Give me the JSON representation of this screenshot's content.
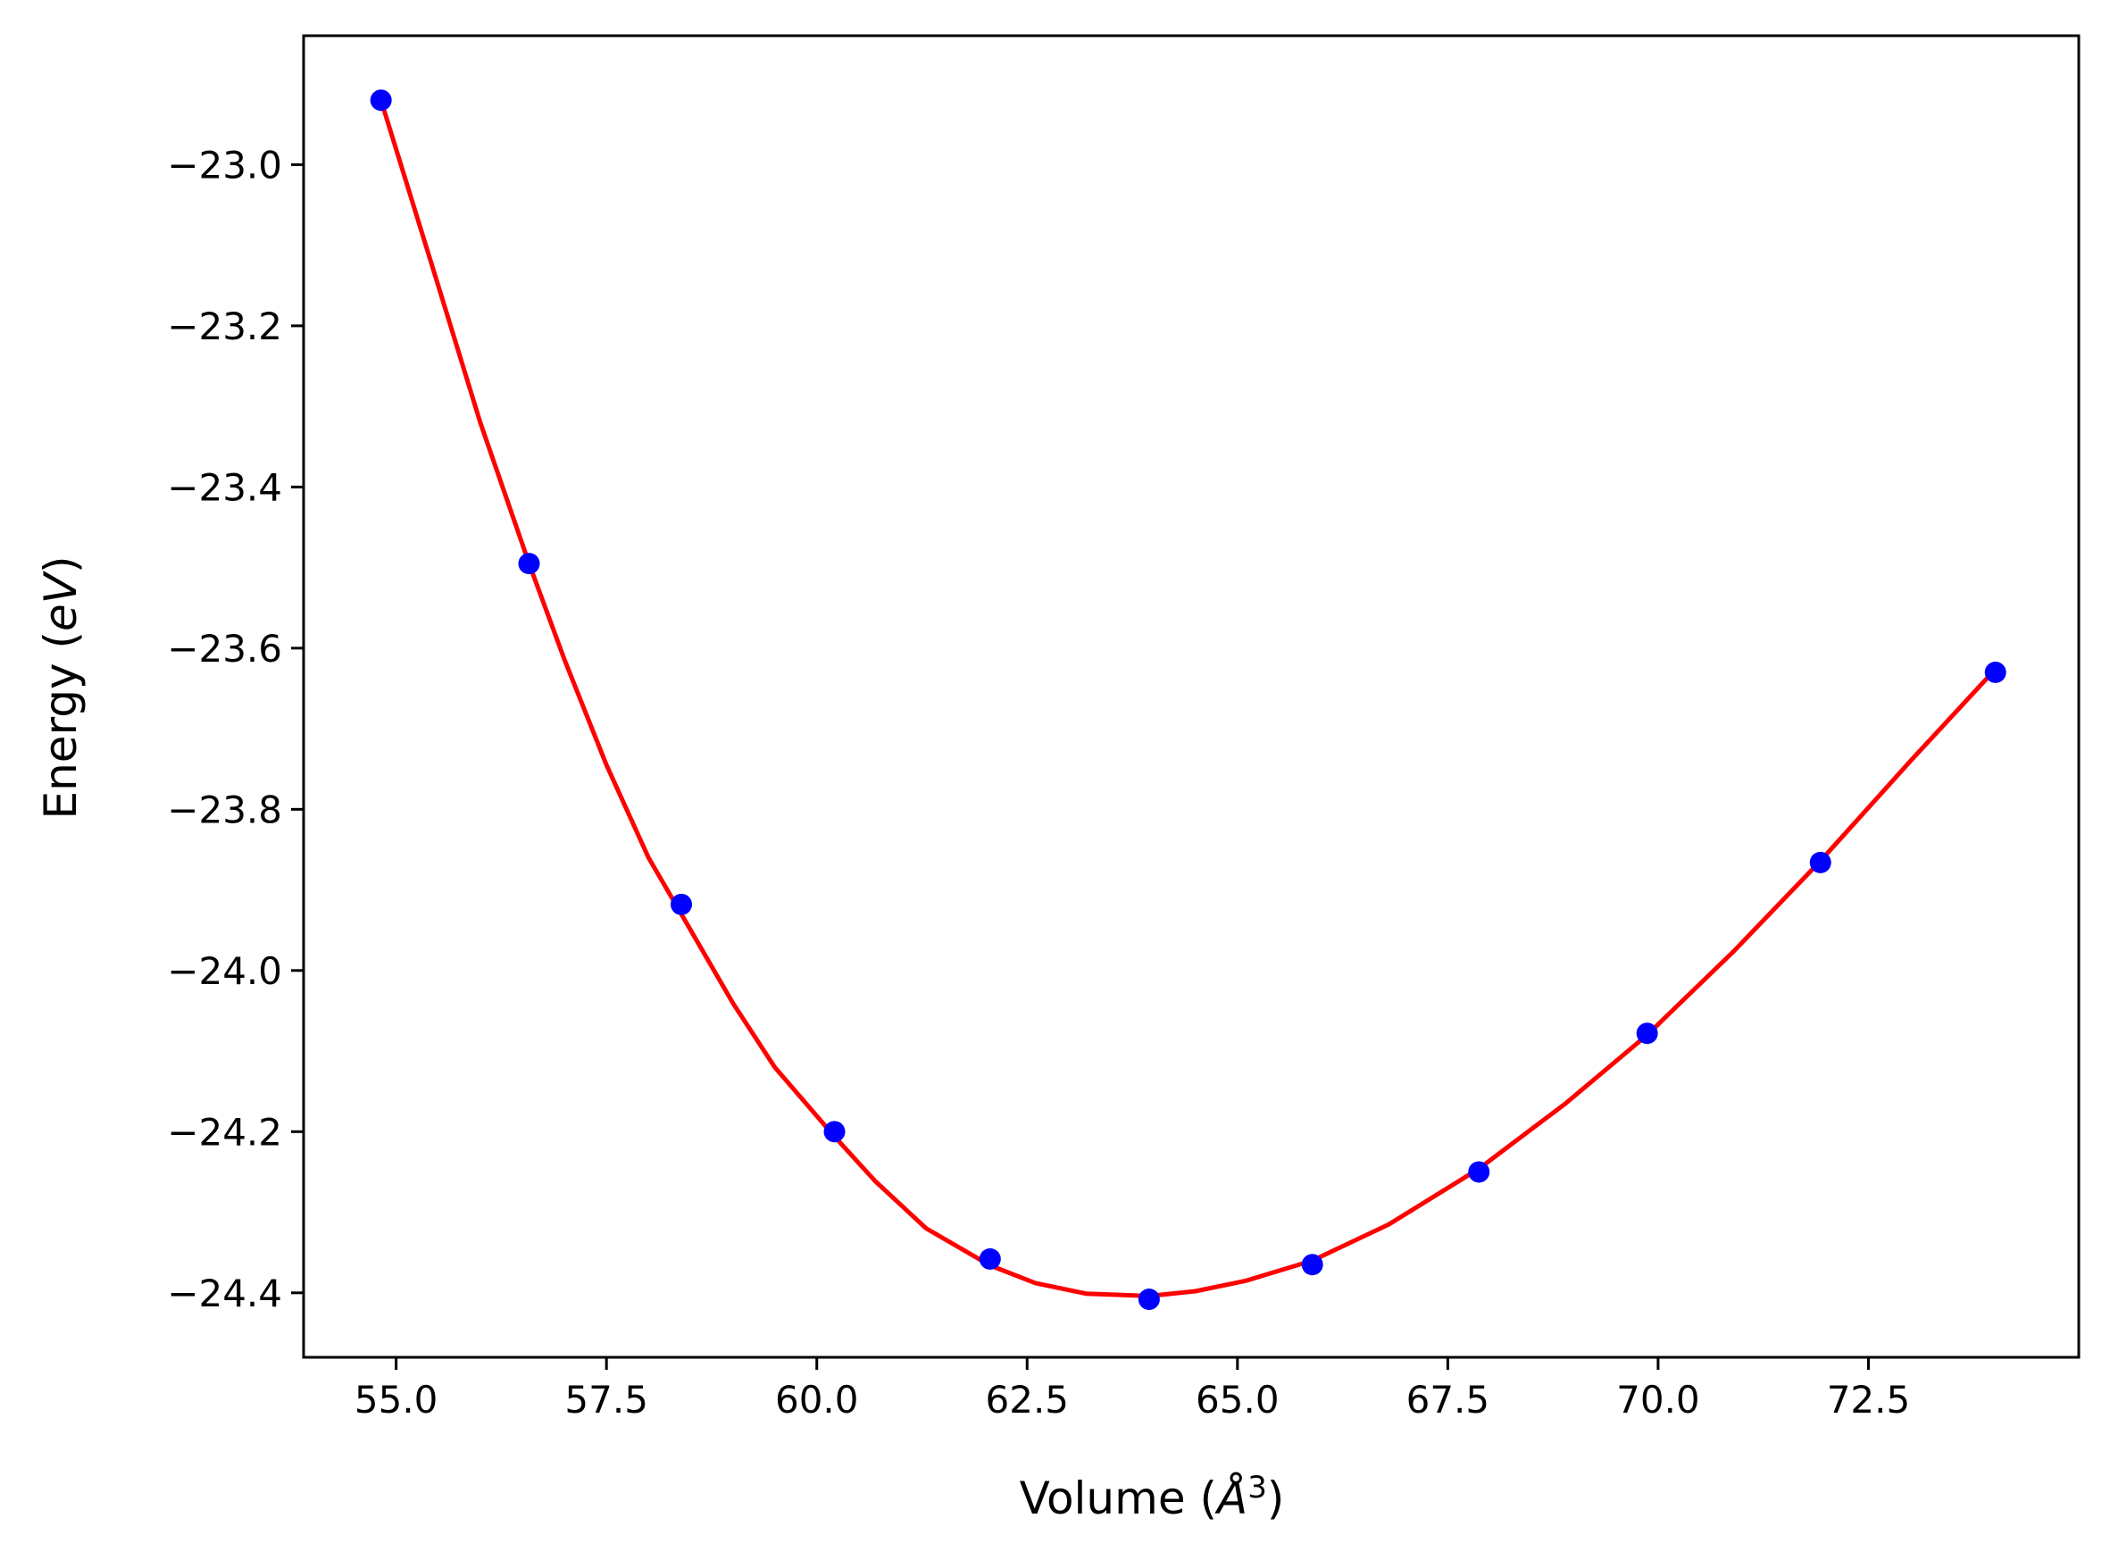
{
  "chart_data": {
    "type": "scatter",
    "title": "",
    "xlabel": {
      "prefix": "Volume (",
      "symbol": "Å",
      "superscript": "3",
      "suffix": ")"
    },
    "ylabel": {
      "prefix": "Energy (",
      "symbol": "eV",
      "suffix": ")"
    },
    "xlim": [
      53.9,
      75.0
    ],
    "ylim": [
      -24.48,
      -22.84
    ],
    "xticks": [
      55.0,
      57.5,
      60.0,
      62.5,
      65.0,
      67.5,
      70.0,
      72.5
    ],
    "xtick_labels": [
      "55.0",
      "57.5",
      "60.0",
      "62.5",
      "65.0",
      "67.5",
      "70.0",
      "72.5"
    ],
    "yticks": [
      -23.0,
      -23.2,
      -23.4,
      -23.6,
      -23.8,
      -24.0,
      -24.2,
      -24.4
    ],
    "ytick_labels": [
      "−23.0",
      "−23.2",
      "−23.4",
      "−23.6",
      "−23.8",
      "−24.0",
      "−24.2",
      "−24.4"
    ],
    "grid": false,
    "legend": "none",
    "series": [
      {
        "kind": "points",
        "color": "#0000ff",
        "x": [
          54.82,
          56.58,
          58.39,
          60.21,
          62.06,
          63.95,
          65.89,
          67.87,
          69.87,
          71.93,
          74.01
        ],
        "y": [
          -22.92,
          -23.495,
          -23.918,
          -24.2,
          -24.358,
          -24.408,
          -24.365,
          -24.25,
          -24.078,
          -23.866,
          -23.63
        ]
      },
      {
        "kind": "fit-curve",
        "color": "#ff0000",
        "x": [
          54.82,
          55.5,
          56.0,
          56.58,
          57.0,
          57.5,
          58.0,
          58.39,
          59.0,
          59.5,
          60.21,
          60.7,
          61.3,
          62.06,
          62.6,
          63.2,
          63.95,
          64.5,
          65.1,
          65.89,
          66.8,
          67.87,
          68.9,
          69.87,
          70.9,
          71.93,
          73.0,
          74.01
        ],
        "y": [
          -22.92,
          -23.15,
          -23.32,
          -23.495,
          -23.614,
          -23.745,
          -23.86,
          -23.93,
          -24.04,
          -24.12,
          -24.206,
          -24.262,
          -24.32,
          -24.366,
          -24.388,
          -24.401,
          -24.404,
          -24.398,
          -24.385,
          -24.36,
          -24.315,
          -24.246,
          -24.165,
          -24.08,
          -23.976,
          -23.864,
          -23.74,
          -23.626
        ]
      }
    ]
  }
}
